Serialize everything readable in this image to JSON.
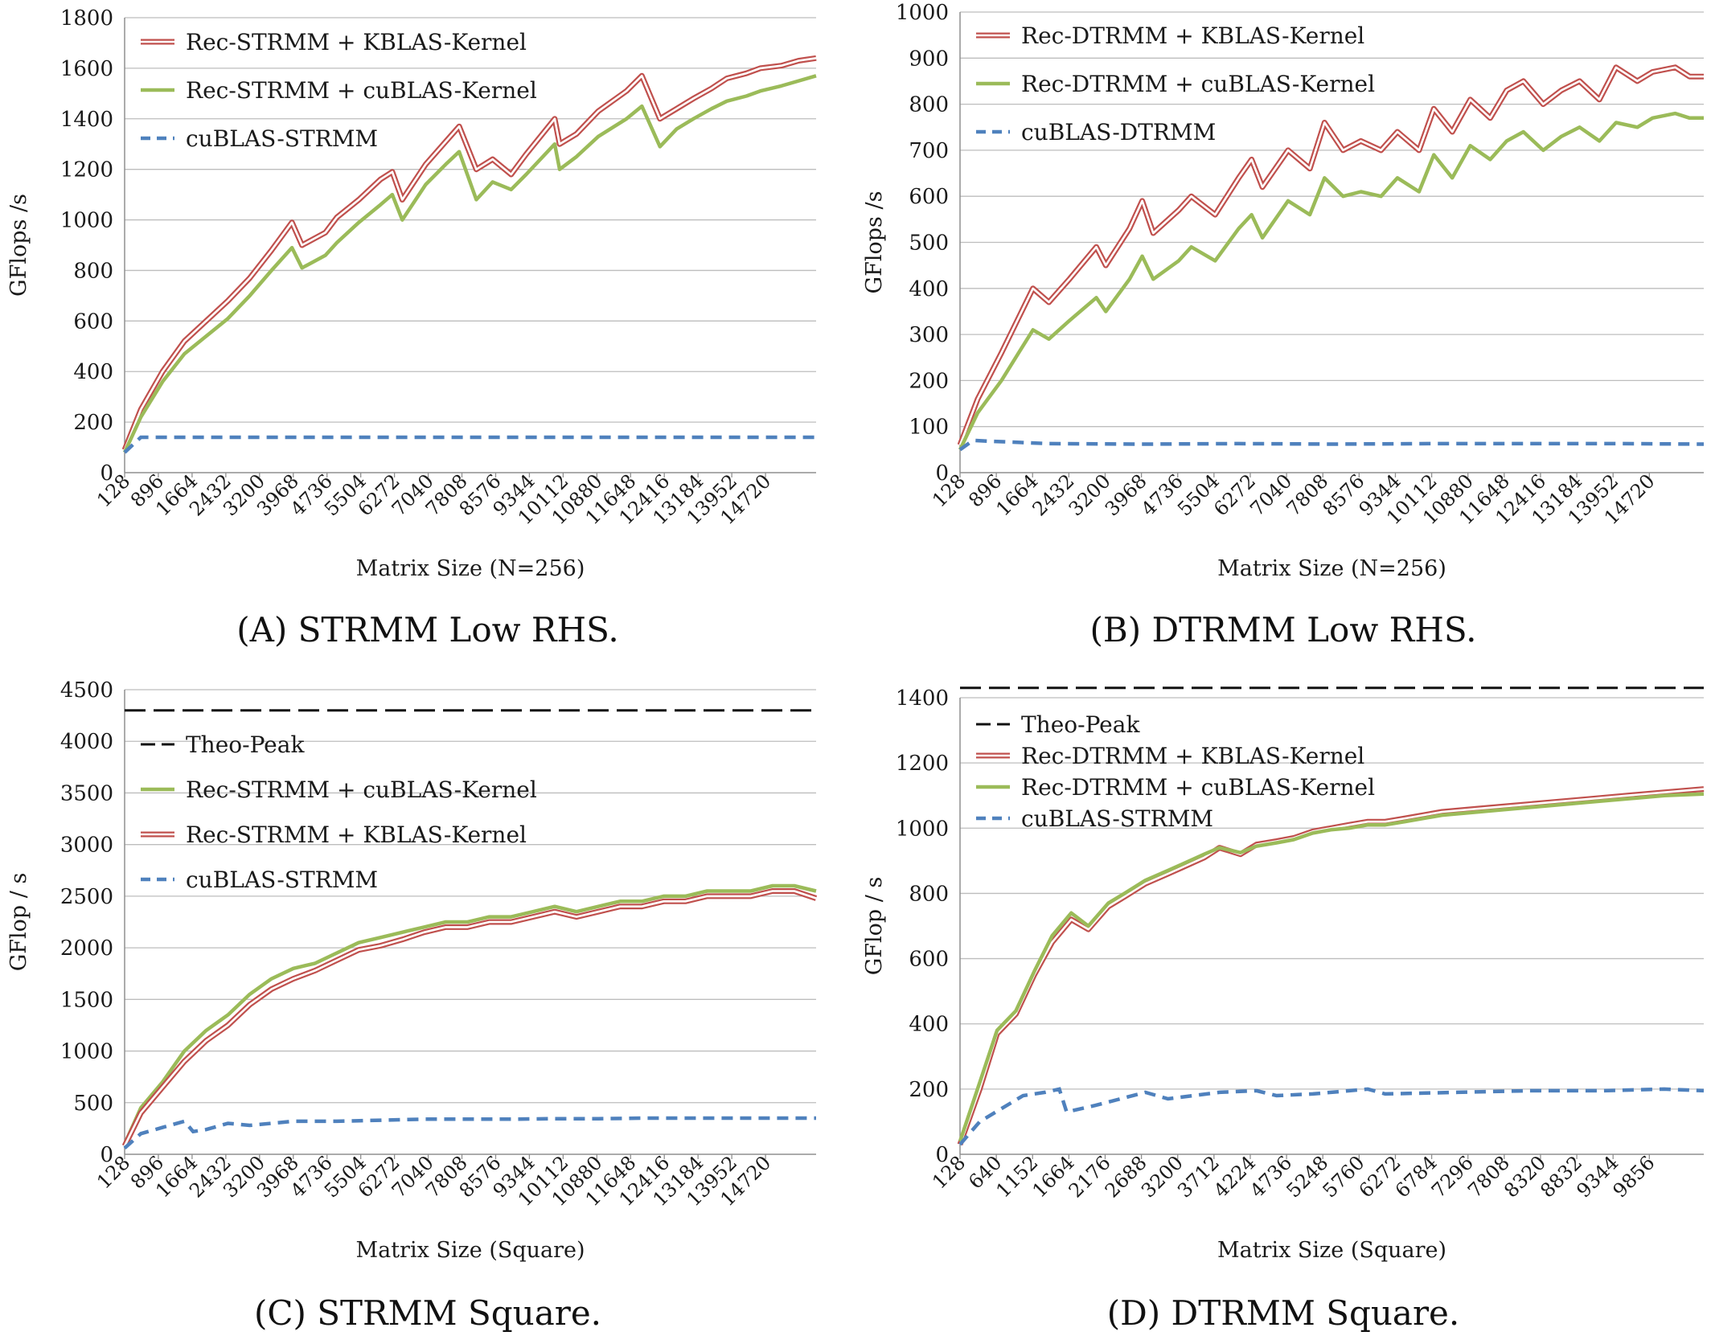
{
  "chart_data": [
    {
      "panel": "A",
      "type": "line",
      "caption": "(A) STRMM Low RHS.",
      "xlabel": "Matrix Size (N=256)",
      "ylabel": "GFlops /s",
      "ylim": [
        0,
        1800
      ],
      "yticks": [
        0,
        200,
        400,
        600,
        800,
        1000,
        1200,
        1400,
        1600,
        1800
      ],
      "x_tick_labels": [
        "128",
        "896",
        "1664",
        "2432",
        "3200",
        "3968",
        "4736",
        "5504",
        "6272",
        "7040",
        "7808",
        "8576",
        "9344",
        "10112",
        "10880",
        "11648",
        "12416",
        "13184",
        "13952",
        "14720"
      ],
      "x_range": [
        128,
        16000
      ],
      "grid": true,
      "legend_position": "top-left",
      "series": [
        {
          "name": "Rec-STRMM + KBLAS-Kernel",
          "color": "#c0504d",
          "style": "double",
          "x": [
            128,
            500,
            1000,
            1500,
            2000,
            2500,
            3000,
            3500,
            3968,
            4200,
            4736,
            5000,
            5504,
            6000,
            6272,
            6500,
            7040,
            7500,
            7808,
            8200,
            8576,
            9000,
            9344,
            10000,
            10112,
            10500,
            11000,
            11648,
            12000,
            12416,
            12800,
            13184,
            13600,
            13952,
            14400,
            14720,
            15200,
            15600,
            16000
          ],
          "y": [
            90,
            250,
            400,
            520,
            600,
            680,
            770,
            880,
            990,
            900,
            950,
            1010,
            1080,
            1160,
            1190,
            1080,
            1220,
            1310,
            1370,
            1200,
            1240,
            1180,
            1260,
            1400,
            1300,
            1340,
            1430,
            1510,
            1570,
            1400,
            1440,
            1480,
            1520,
            1560,
            1580,
            1600,
            1610,
            1630,
            1640
          ]
        },
        {
          "name": "Rec-STRMM + cuBLAS-Kernel",
          "color": "#9bbb59",
          "style": "solid",
          "x": [
            128,
            500,
            1000,
            1500,
            2000,
            2500,
            3000,
            3500,
            3968,
            4200,
            4736,
            5000,
            5504,
            6000,
            6272,
            6500,
            7040,
            7500,
            7808,
            8200,
            8576,
            9000,
            9344,
            10000,
            10112,
            10500,
            11000,
            11648,
            12000,
            12416,
            12800,
            13184,
            13600,
            13952,
            14400,
            14720,
            15200,
            15600,
            16000
          ],
          "y": [
            80,
            220,
            360,
            470,
            540,
            610,
            700,
            800,
            890,
            810,
            860,
            910,
            990,
            1060,
            1100,
            1000,
            1140,
            1220,
            1270,
            1080,
            1150,
            1120,
            1180,
            1300,
            1200,
            1250,
            1330,
            1400,
            1450,
            1290,
            1360,
            1400,
            1440,
            1470,
            1490,
            1510,
            1530,
            1550,
            1570
          ]
        },
        {
          "name": "cuBLAS-STRMM",
          "color": "#4f81bd",
          "style": "dashed",
          "x": [
            128,
            500,
            1000,
            2000,
            4000,
            6000,
            8000,
            10000,
            12000,
            14000,
            16000
          ],
          "y": [
            80,
            140,
            140,
            140,
            140,
            140,
            140,
            140,
            140,
            140,
            140
          ]
        }
      ]
    },
    {
      "panel": "B",
      "type": "line",
      "caption": "(B) DTRMM Low RHS.",
      "xlabel": "Matrix Size (N=256)",
      "ylabel": "GFlops /s",
      "ylim": [
        0,
        1000
      ],
      "yticks": [
        0,
        100,
        200,
        300,
        400,
        500,
        600,
        700,
        800,
        900,
        1000
      ],
      "x_tick_labels": [
        "128",
        "896",
        "1664",
        "2432",
        "3200",
        "3968",
        "4736",
        "5504",
        "6272",
        "7040",
        "7808",
        "8576",
        "9344",
        "10112",
        "10880",
        "11648",
        "12416",
        "13184",
        "13952",
        "14720"
      ],
      "x_range": [
        128,
        15800
      ],
      "grid": true,
      "legend_position": "top-left",
      "series": [
        {
          "name": "Rec-DTRMM + KBLAS-Kernel",
          "color": "#c0504d",
          "style": "double",
          "x": [
            128,
            500,
            1000,
            1664,
            2000,
            2432,
            3000,
            3200,
            3700,
            3968,
            4200,
            4736,
            5000,
            5504,
            6000,
            6272,
            6500,
            7040,
            7500,
            7808,
            8200,
            8576,
            9000,
            9344,
            9800,
            10112,
            10500,
            10880,
            11300,
            11648,
            12000,
            12416,
            12800,
            13184,
            13600,
            13952,
            14400,
            14720,
            15200,
            15500,
            15800
          ],
          "y": [
            60,
            160,
            260,
            400,
            370,
            420,
            490,
            450,
            530,
            590,
            520,
            570,
            600,
            560,
            640,
            680,
            620,
            700,
            660,
            760,
            700,
            720,
            700,
            740,
            700,
            790,
            740,
            810,
            770,
            830,
            850,
            800,
            830,
            850,
            810,
            880,
            850,
            870,
            880,
            860,
            860
          ]
        },
        {
          "name": "Rec-DTRMM + cuBLAS-Kernel",
          "color": "#9bbb59",
          "style": "solid",
          "x": [
            128,
            500,
            1000,
            1664,
            2000,
            2432,
            3000,
            3200,
            3700,
            3968,
            4200,
            4736,
            5000,
            5504,
            6000,
            6272,
            6500,
            7040,
            7500,
            7808,
            8200,
            8576,
            9000,
            9344,
            9800,
            10112,
            10500,
            10880,
            11300,
            11648,
            12000,
            12416,
            12800,
            13184,
            13600,
            13952,
            14400,
            14720,
            15200,
            15500,
            15800
          ],
          "y": [
            50,
            130,
            200,
            310,
            290,
            330,
            380,
            350,
            420,
            470,
            420,
            460,
            490,
            460,
            530,
            560,
            510,
            590,
            560,
            640,
            600,
            610,
            600,
            640,
            610,
            690,
            640,
            710,
            680,
            720,
            740,
            700,
            730,
            750,
            720,
            760,
            750,
            770,
            780,
            770,
            770
          ]
        },
        {
          "name": "cuBLAS-DTRMM",
          "color": "#4f81bd",
          "style": "dashed",
          "x": [
            128,
            400,
            800,
            2000,
            4000,
            6000,
            8000,
            10000,
            12000,
            14000,
            15800
          ],
          "y": [
            50,
            70,
            68,
            63,
            62,
            63,
            62,
            63,
            63,
            63,
            62
          ]
        }
      ]
    },
    {
      "panel": "C",
      "type": "line",
      "caption": "(C) STRMM Square.",
      "xlabel": "Matrix Size (Square)",
      "ylabel": "GFlop / s",
      "ylim": [
        0,
        4500
      ],
      "yticks": [
        0,
        500,
        1000,
        1500,
        2000,
        2500,
        3000,
        3500,
        4000,
        4500
      ],
      "x_tick_labels": [
        "128",
        "896",
        "1664",
        "2432",
        "3200",
        "3968",
        "4736",
        "5504",
        "6272",
        "7040",
        "7808",
        "8576",
        "9344",
        "10112",
        "10880",
        "11648",
        "12416",
        "13184",
        "13952",
        "14720"
      ],
      "x_range": [
        128,
        16000
      ],
      "grid": true,
      "legend_position": "top-left",
      "series": [
        {
          "name": "Theo-Peak",
          "color": "#111111",
          "style": "longdash",
          "x": [
            128,
            16000
          ],
          "y": [
            4300,
            4300
          ]
        },
        {
          "name": "Rec-STRMM + cuBLAS-Kernel",
          "color": "#9bbb59",
          "style": "solid",
          "x": [
            128,
            500,
            1000,
            1500,
            2000,
            2500,
            3000,
            3500,
            4000,
            4500,
            5000,
            5500,
            6000,
            6500,
            7000,
            7500,
            8000,
            8500,
            9000,
            9500,
            10000,
            10500,
            11000,
            11500,
            12000,
            12500,
            13000,
            13500,
            14000,
            14500,
            15000,
            15500,
            16000
          ],
          "y": [
            100,
            450,
            700,
            1000,
            1200,
            1350,
            1550,
            1700,
            1800,
            1850,
            1950,
            2050,
            2100,
            2150,
            2200,
            2250,
            2250,
            2300,
            2300,
            2350,
            2400,
            2350,
            2400,
            2450,
            2450,
            2500,
            2500,
            2550,
            2550,
            2550,
            2600,
            2600,
            2550
          ]
        },
        {
          "name": "Rec-STRMM + KBLAS-Kernel",
          "color": "#c0504d",
          "style": "double",
          "x": [
            128,
            500,
            1000,
            1500,
            2000,
            2500,
            3000,
            3500,
            4000,
            4500,
            5000,
            5500,
            6000,
            6500,
            7000,
            7500,
            8000,
            8500,
            9000,
            9500,
            10000,
            10500,
            11000,
            11500,
            12000,
            12500,
            13000,
            13500,
            14000,
            14500,
            15000,
            15500,
            16000
          ],
          "y": [
            80,
            400,
            650,
            900,
            1100,
            1250,
            1450,
            1600,
            1700,
            1780,
            1880,
            1980,
            2020,
            2080,
            2150,
            2200,
            2200,
            2250,
            2250,
            2300,
            2350,
            2300,
            2350,
            2400,
            2400,
            2450,
            2450,
            2500,
            2500,
            2500,
            2550,
            2550,
            2480
          ]
        },
        {
          "name": "cuBLAS-STRMM",
          "color": "#4f81bd",
          "style": "dashed",
          "x": [
            128,
            500,
            1000,
            1500,
            1700,
            2000,
            2500,
            3000,
            4000,
            5000,
            6000,
            7000,
            8000,
            9000,
            10000,
            11000,
            12000,
            13000,
            14000,
            15000,
            16000
          ],
          "y": [
            60,
            200,
            260,
            320,
            220,
            240,
            300,
            280,
            320,
            320,
            330,
            340,
            340,
            340,
            345,
            345,
            350,
            350,
            350,
            350,
            350
          ]
        }
      ]
    },
    {
      "panel": "D",
      "type": "line",
      "caption": "(D) DTRMM Square.",
      "xlabel": "Matrix Size (Square)",
      "ylabel": "GFlop / s",
      "ylim": [
        0,
        1400
      ],
      "yticks": [
        0,
        200,
        400,
        600,
        800,
        1000,
        1200,
        1400
      ],
      "x_tick_labels": [
        "128",
        "640",
        "1152",
        "1664",
        "2176",
        "2688",
        "3200",
        "3712",
        "4224",
        "4736",
        "5248",
        "5760",
        "6272",
        "6784",
        "7296",
        "7808",
        "8320",
        "8832",
        "9344",
        "9856"
      ],
      "x_range": [
        128,
        10400
      ],
      "grid": true,
      "legend_position": "top-left",
      "series": [
        {
          "name": "Theo-Peak",
          "color": "#111111",
          "style": "longdash",
          "x": [
            128,
            10400
          ],
          "y": [
            1430,
            1430
          ]
        },
        {
          "name": "Rec-DTRMM + KBLAS-Kernel",
          "color": "#c0504d",
          "style": "double",
          "x": [
            128,
            400,
            640,
            900,
            1152,
            1400,
            1664,
            1900,
            2176,
            2400,
            2688,
            3000,
            3200,
            3500,
            3712,
            4000,
            4224,
            4500,
            4736,
            5000,
            5248,
            5500,
            5760,
            6000,
            6272,
            6784,
            7296,
            7808,
            8320,
            8832,
            9344,
            9856,
            10400
          ],
          "y": [
            30,
            200,
            370,
            430,
            550,
            650,
            720,
            690,
            760,
            790,
            830,
            860,
            880,
            910,
            940,
            920,
            950,
            960,
            970,
            990,
            1000,
            1010,
            1020,
            1020,
            1030,
            1050,
            1060,
            1070,
            1080,
            1090,
            1100,
            1110,
            1120
          ]
        },
        {
          "name": "Rec-DTRMM + cuBLAS-Kernel",
          "color": "#9bbb59",
          "style": "solid",
          "x": [
            128,
            400,
            640,
            900,
            1152,
            1400,
            1664,
            1900,
            2176,
            2400,
            2688,
            3000,
            3200,
            3500,
            3712,
            4000,
            4224,
            4500,
            4736,
            5000,
            5248,
            5500,
            5760,
            6000,
            6272,
            6784,
            7296,
            7808,
            8320,
            8832,
            9344,
            9856,
            10400
          ],
          "y": [
            40,
            220,
            380,
            440,
            560,
            670,
            740,
            700,
            770,
            800,
            840,
            870,
            890,
            920,
            940,
            925,
            945,
            955,
            965,
            985,
            995,
            1000,
            1010,
            1010,
            1020,
            1040,
            1050,
            1060,
            1070,
            1080,
            1090,
            1100,
            1105
          ]
        },
        {
          "name": "cuBLAS-STRMM",
          "color": "#4f81bd",
          "style": "dashed",
          "x": [
            128,
            400,
            700,
            1000,
            1300,
            1500,
            1600,
            2000,
            2688,
            3000,
            3712,
            4224,
            4500,
            5000,
            5760,
            6000,
            7000,
            8000,
            9000,
            9856,
            10400
          ],
          "y": [
            30,
            100,
            140,
            180,
            190,
            200,
            130,
            150,
            190,
            170,
            190,
            195,
            180,
            185,
            200,
            185,
            190,
            195,
            195,
            200,
            195
          ]
        }
      ]
    }
  ]
}
